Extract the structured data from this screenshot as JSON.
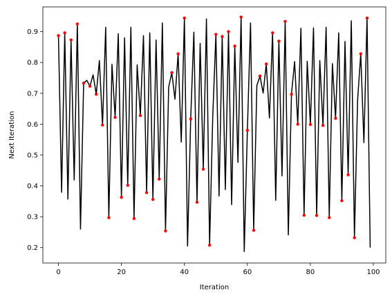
{
  "chart_data": {
    "type": "line",
    "title": "",
    "xlabel": "Iteration",
    "ylabel": "Next Iteration",
    "xlim": [
      -4.95,
      103.95
    ],
    "ylim": [
      0.15,
      0.98
    ],
    "xticks": [
      0,
      20,
      40,
      60,
      80,
      100
    ],
    "yticks": [
      0.2,
      0.3,
      0.4,
      0.5,
      0.6,
      0.7,
      0.8,
      0.9
    ],
    "grid": false,
    "legend": "none",
    "line_color": "#000000",
    "marker_color": "#ff0000",
    "series": [
      {
        "x": [
          0,
          1,
          2,
          3,
          4,
          5,
          6,
          7,
          8,
          9,
          10,
          11,
          12,
          13,
          14,
          15,
          16,
          17,
          18,
          19,
          20,
          21,
          22,
          23,
          24,
          25,
          26,
          27,
          28,
          29,
          30,
          31,
          32,
          33,
          34,
          35,
          36,
          37,
          38,
          39,
          40,
          41,
          42,
          43,
          44,
          45,
          46,
          47,
          48,
          49,
          50,
          51,
          52,
          53,
          54,
          55,
          56,
          57,
          58,
          59,
          60,
          61,
          62,
          63,
          64,
          65,
          66,
          67,
          68,
          69,
          70,
          71,
          72,
          73,
          74,
          75,
          76,
          77,
          78,
          79,
          80,
          81,
          82,
          83,
          84,
          85,
          86,
          87,
          88,
          89,
          90,
          91,
          92,
          93,
          94,
          95,
          96,
          97,
          98,
          99
        ],
        "y": [
          0.887,
          0.379,
          0.896,
          0.357,
          0.873,
          0.419,
          0.925,
          0.26,
          0.733,
          0.742,
          0.723,
          0.76,
          0.697,
          0.806,
          0.597,
          0.914,
          0.297,
          0.794,
          0.622,
          0.893,
          0.363,
          0.88,
          0.402,
          0.914,
          0.294,
          0.792,
          0.628,
          0.887,
          0.378,
          0.896,
          0.356,
          0.873,
          0.422,
          0.928,
          0.254,
          0.72,
          0.767,
          0.681,
          0.828,
          0.542,
          0.944,
          0.205,
          0.617,
          0.898,
          0.347,
          0.862,
          0.454,
          0.941,
          0.208,
          0.624,
          0.891,
          0.367,
          0.884,
          0.388,
          0.9,
          0.339,
          0.853,
          0.476,
          0.947,
          0.187,
          0.58,
          0.928,
          0.256,
          0.725,
          0.756,
          0.701,
          0.795,
          0.62,
          0.896,
          0.353,
          0.869,
          0.432,
          0.933,
          0.241,
          0.697,
          0.803,
          0.6,
          0.911,
          0.305,
          0.804,
          0.599,
          0.912,
          0.304,
          0.806,
          0.596,
          0.914,
          0.297,
          0.796,
          0.619,
          0.896,
          0.352,
          0.868,
          0.436,
          0.935,
          0.232,
          0.678,
          0.828,
          0.54,
          0.944,
          0.2
        ]
      }
    ]
  }
}
